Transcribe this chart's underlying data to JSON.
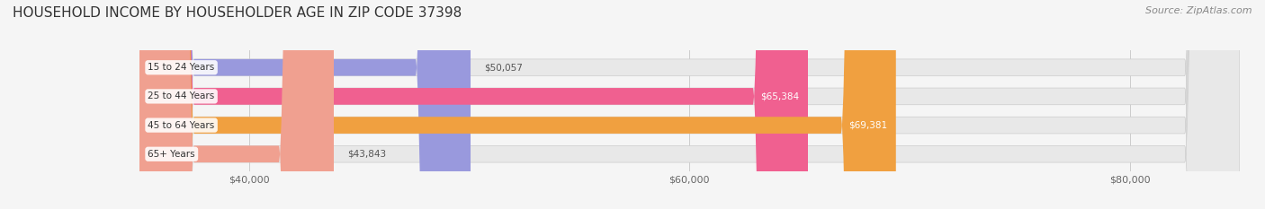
{
  "title": "HOUSEHOLD INCOME BY HOUSEHOLDER AGE IN ZIP CODE 37398",
  "source": "Source: ZipAtlas.com",
  "categories": [
    "15 to 24 Years",
    "25 to 44 Years",
    "45 to 64 Years",
    "65+ Years"
  ],
  "values": [
    50057,
    65384,
    69381,
    43843
  ],
  "bar_colors": [
    "#9999dd",
    "#f06090",
    "#f0a040",
    "#f0a090"
  ],
  "x_min": 35000,
  "x_max": 85000,
  "x_ticks": [
    40000,
    60000,
    80000
  ],
  "x_tick_labels": [
    "$40,000",
    "$60,000",
    "$80,000"
  ],
  "value_labels": [
    "$50,057",
    "$65,384",
    "$69,381",
    "$43,843"
  ],
  "label_inside": [
    false,
    true,
    true,
    false
  ],
  "background_color": "#f5f5f5",
  "bar_bg_color": "#e8e8e8",
  "title_fontsize": 11,
  "source_fontsize": 8
}
